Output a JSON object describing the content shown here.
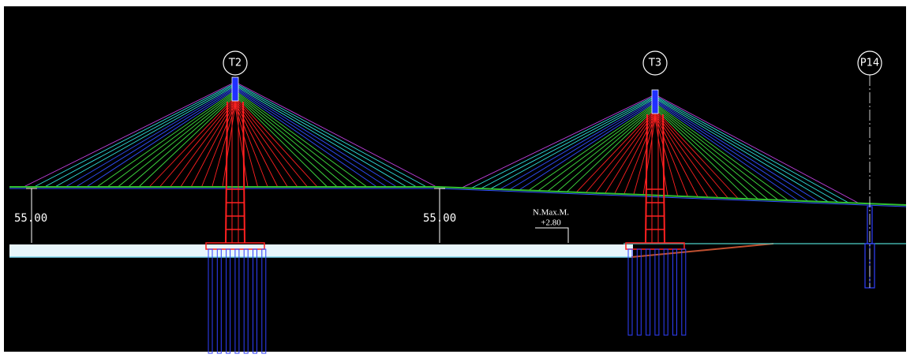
{
  "tower_labels": [
    "T2",
    "T3",
    "P14"
  ],
  "dimensions": [
    "55.00",
    "55.00"
  ],
  "annotation": {
    "title": "N.Max.M.",
    "value": "+2.80"
  }
}
